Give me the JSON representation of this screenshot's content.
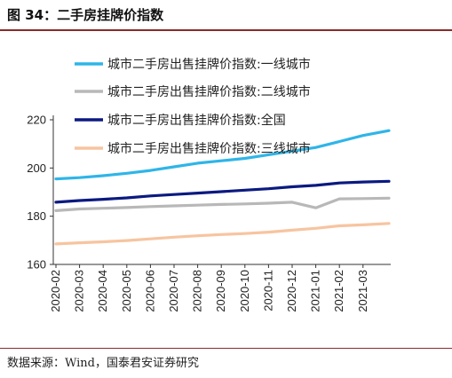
{
  "figure": {
    "title": "图 34：二手房挂牌价指数",
    "source": "数据来源：Wind，国泰君安证券研究"
  },
  "chart_data": {
    "type": "line",
    "title": "",
    "xlabel": "",
    "ylabel": "",
    "ylim": [
      160,
      220
    ],
    "yticks": [
      160,
      180,
      200,
      220
    ],
    "x_ticks": [
      "2020-02",
      "2020-03",
      "2020-04",
      "2020-05",
      "2020-06",
      "2020-07",
      "2020-08",
      "2020-09",
      "2020-10",
      "2020-11",
      "2020-12",
      "2021-01",
      "2021-02",
      "2021-03"
    ],
    "x": [
      "2020-02",
      "2020-03",
      "2020-04",
      "2020-05",
      "2020-06",
      "2020-07",
      "2020-08",
      "2020-09",
      "2020-10",
      "2020-11",
      "2020-12",
      "2021-01",
      "2021-02",
      "2021-03",
      "2021-03-20"
    ],
    "legend_position": "top-center",
    "grid": false,
    "series": [
      {
        "name": "城市二手房出售挂牌价指数:一线城市",
        "color": "#2fb5e8",
        "values": [
          195.5,
          196.0,
          196.8,
          197.8,
          199.0,
          200.5,
          202.0,
          203.0,
          204.0,
          205.5,
          207.0,
          208.5,
          211.0,
          213.5,
          215.5
        ]
      },
      {
        "name": "城市二手房出售挂牌价指数:二线城市",
        "color": "#b8b8b8",
        "values": [
          182.3,
          183.0,
          183.3,
          183.6,
          184.0,
          184.3,
          184.6,
          184.9,
          185.1,
          185.4,
          185.8,
          183.5,
          187.2,
          187.3,
          187.5
        ]
      },
      {
        "name": "城市二手房出售挂牌价指数:全国",
        "color": "#0b1a80",
        "values": [
          185.8,
          186.5,
          187.0,
          187.6,
          188.4,
          189.0,
          189.6,
          190.2,
          190.8,
          191.4,
          192.2,
          192.8,
          193.8,
          194.2,
          194.5
        ]
      },
      {
        "name": "城市二手房出售挂牌价指数:三线城市",
        "color": "#f7c4a0",
        "values": [
          168.5,
          169.0,
          169.4,
          169.9,
          170.6,
          171.3,
          171.9,
          172.4,
          172.8,
          173.4,
          174.2,
          175.0,
          176.0,
          176.4,
          177.0
        ]
      }
    ]
  }
}
